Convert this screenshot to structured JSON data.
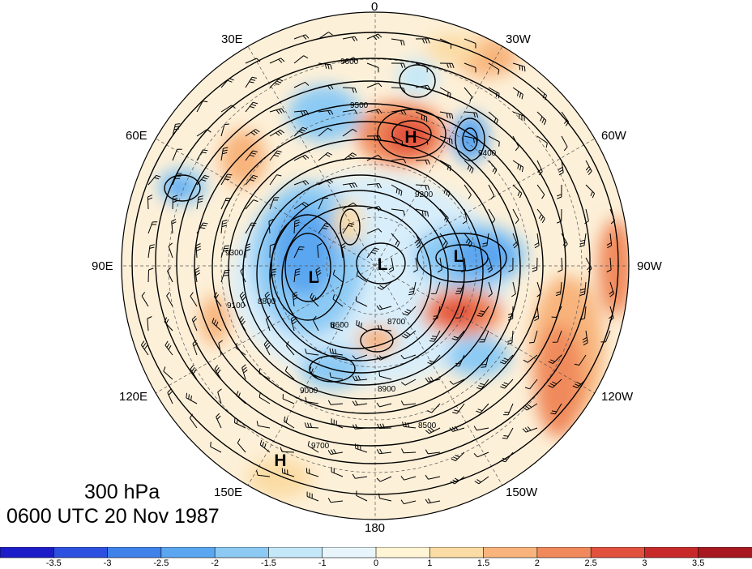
{
  "map": {
    "title": "300 hPa",
    "subtitle": "0600 UTC 20 Nov 1987",
    "longitude_labels": [
      "0",
      "30W",
      "60W",
      "90W",
      "120W",
      "150W",
      "180",
      "150E",
      "120E",
      "90E",
      "60E",
      "30E"
    ],
    "pressure_centers": [
      {
        "label": "H",
        "type": "high"
      },
      {
        "label": "L",
        "type": "low"
      },
      {
        "label": "L",
        "type": "low"
      },
      {
        "label": "L",
        "type": "low"
      },
      {
        "label": "H",
        "type": "high"
      }
    ],
    "contour_labels": [
      "9600",
      "9500",
      "9400",
      "9300",
      "9200",
      "9100",
      "9000",
      "8900",
      "8800",
      "8700",
      "8600",
      "8500",
      "9700"
    ],
    "colorbar": {
      "ticks": [
        "-3.5",
        "-3",
        "-2.5",
        "-2",
        "-1.5",
        "-1",
        "0",
        "1",
        "1.5",
        "2",
        "2.5",
        "3",
        "3.5"
      ],
      "colors": [
        "#1c1cc8",
        "#2c50e0",
        "#3e82ea",
        "#5aa6f0",
        "#8ccaf4",
        "#c4e8f8",
        "#e8f6fc",
        "#fff4d4",
        "#fbdca4",
        "#f8b47c",
        "#f08a5c",
        "#e2503e",
        "#c82a2a",
        "#a81820"
      ]
    }
  }
}
